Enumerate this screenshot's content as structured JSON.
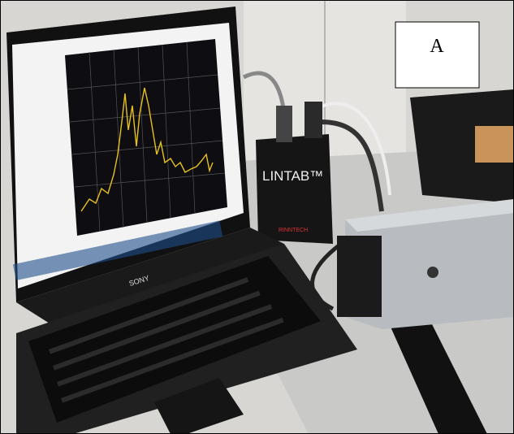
{
  "label": "A",
  "laptop": {
    "brand": "SONY"
  },
  "device": {
    "brand": "LINTAB™",
    "maker": "RINNTECH"
  }
}
